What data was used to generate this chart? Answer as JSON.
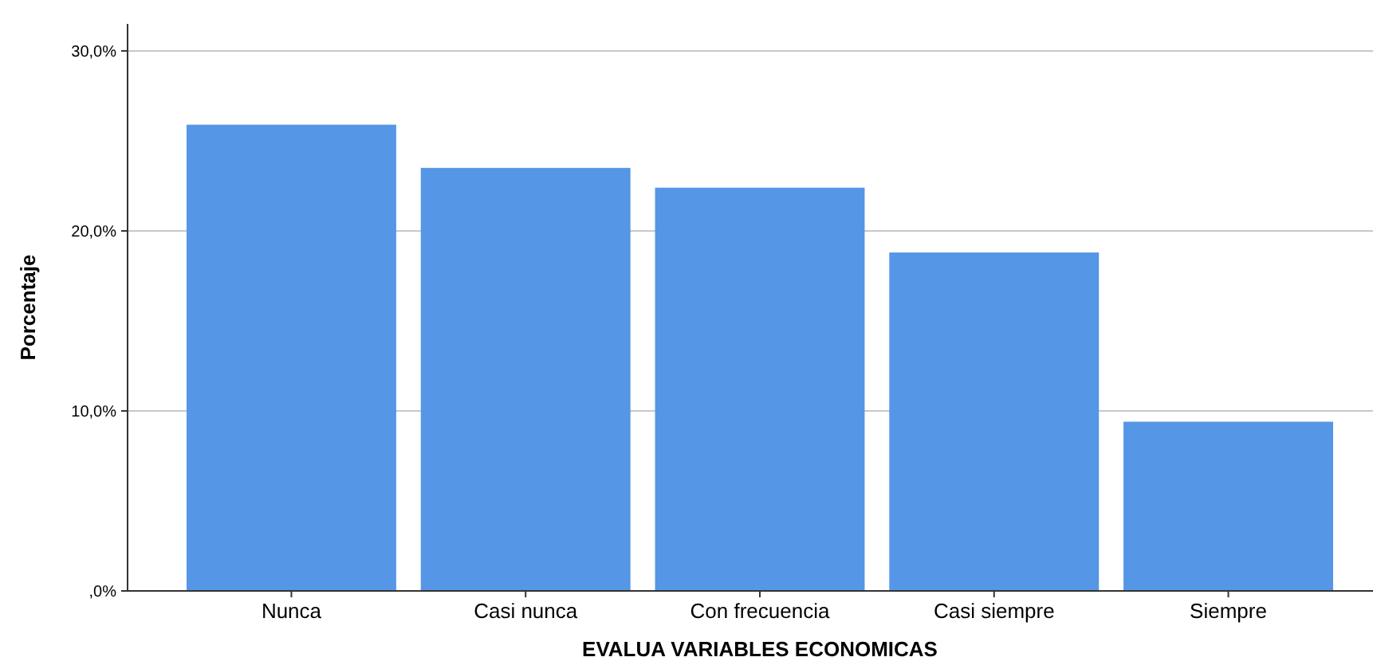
{
  "chart_data": {
    "type": "bar",
    "xlabel": "EVALUA VARIABLES ECONOMICAS",
    "ylabel": "Porcentaje",
    "categories": [
      "Nunca",
      "Casi nunca",
      "Con frecuencia",
      "Casi siempre",
      "Siempre"
    ],
    "values": [
      25.9,
      23.5,
      22.4,
      18.8,
      9.4
    ],
    "color": "#5596e6",
    "ylim": [
      0,
      31.5
    ],
    "yticks": [
      {
        "value": 0,
        "label": ",0%"
      },
      {
        "value": 10,
        "label": "10,0%"
      },
      {
        "value": 20,
        "label": "20,0%"
      },
      {
        "value": 30,
        "label": "30,0%"
      }
    ],
    "grid": "y"
  }
}
